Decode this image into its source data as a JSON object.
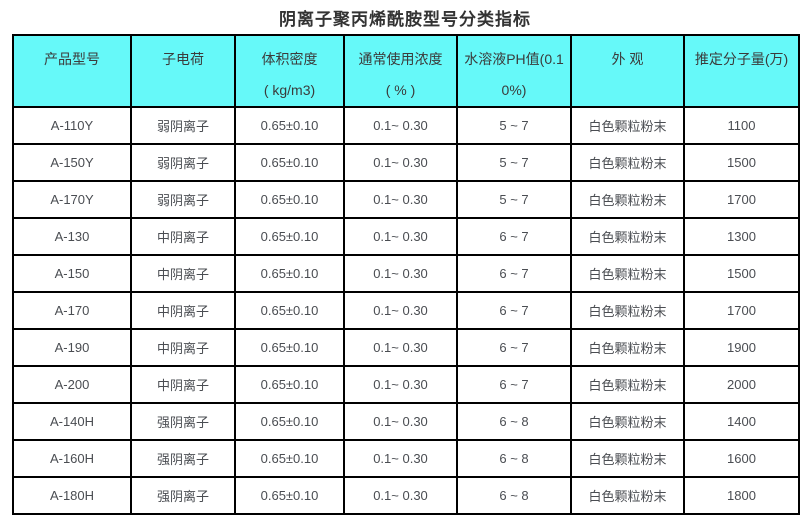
{
  "title": "阴离子聚丙烯酰胺型号分类指标",
  "table": {
    "colors": {
      "header_bg": "#66f9f9",
      "border": "#000000",
      "row_bg": "#ffffff",
      "header_text": "#3b3b3b",
      "cell_text": "#4a4d52",
      "title_text": "#333333"
    },
    "headers": [
      {
        "line1": "产品型号",
        "line2": ""
      },
      {
        "line1": "子电荷",
        "line2": ""
      },
      {
        "line1": "体积密度",
        "line2": "( kg/m3)"
      },
      {
        "line1": "通常使用浓度",
        "line2": "( % )"
      },
      {
        "line1": "水溶液PH值(0.1",
        "line2": "0%)"
      },
      {
        "line1": "外 观",
        "line2": ""
      },
      {
        "line1": "推定分子量(万)",
        "line2": ""
      }
    ],
    "rows": [
      [
        "A-110Y",
        "弱阴离子",
        "0.65±0.10",
        "0.1~ 0.30",
        "5 ~ 7",
        "白色颗粒粉末",
        "1100"
      ],
      [
        "A-150Y",
        "弱阴离子",
        "0.65±0.10",
        "0.1~ 0.30",
        "5 ~ 7",
        "白色颗粒粉末",
        "1500"
      ],
      [
        "A-170Y",
        "弱阴离子",
        "0.65±0.10",
        "0.1~ 0.30",
        "5 ~ 7",
        "白色颗粒粉末",
        "1700"
      ],
      [
        "A-130",
        "中阴离子",
        "0.65±0.10",
        "0.1~ 0.30",
        "6 ~ 7",
        "白色颗粒粉末",
        "1300"
      ],
      [
        "A-150",
        "中阴离子",
        "0.65±0.10",
        "0.1~ 0.30",
        "6 ~ 7",
        "白色颗粒粉末",
        "1500"
      ],
      [
        "A-170",
        "中阴离子",
        "0.65±0.10",
        "0.1~ 0.30",
        "6 ~ 7",
        "白色颗粒粉末",
        "1700"
      ],
      [
        "A-190",
        "中阴离子",
        "0.65±0.10",
        "0.1~ 0.30",
        "6 ~ 7",
        "白色颗粒粉末",
        "1900"
      ],
      [
        "A-200",
        "中阴离子",
        "0.65±0.10",
        "0.1~ 0.30",
        "6 ~ 7",
        "白色颗粒粉末",
        "2000"
      ],
      [
        "A-140H",
        "强阴离子",
        "0.65±0.10",
        "0.1~ 0.30",
        "6 ~ 8",
        "白色颗粒粉末",
        "1400"
      ],
      [
        "A-160H",
        "强阴离子",
        "0.65±0.10",
        "0.1~ 0.30",
        "6 ~ 8",
        "白色颗粒粉末",
        "1600"
      ],
      [
        "A-180H",
        "强阴离子",
        "0.65±0.10",
        "0.1~ 0.30",
        "6 ~ 8",
        "白色颗粒粉末",
        "1800"
      ]
    ]
  }
}
